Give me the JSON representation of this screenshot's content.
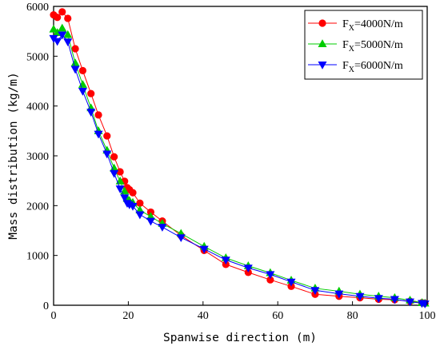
{
  "chart_data": {
    "type": "line",
    "xlabel": "Spanwise direction (m)",
    "ylabel": "Mass distribution (kg/m)",
    "xlim": [
      0,
      100
    ],
    "ylim": [
      0,
      6000
    ],
    "x_ticks": [
      0,
      20,
      40,
      60,
      80,
      100
    ],
    "y_ticks": [
      0,
      1000,
      2000,
      3000,
      4000,
      5000,
      6000
    ],
    "grid": false,
    "legend_position": "top-right",
    "series": [
      {
        "name_prefix": "F",
        "name_subscript": "X",
        "name_suffix": "=4000N/m",
        "color": "#ff0000",
        "marker": "circle",
        "points": [
          [
            0,
            5830
          ],
          [
            1,
            5780
          ],
          [
            2.3,
            5890
          ],
          [
            3.8,
            5760
          ],
          [
            5.8,
            5150
          ],
          [
            7.8,
            4710
          ],
          [
            10,
            4250
          ],
          [
            12,
            3820
          ],
          [
            14.3,
            3400
          ],
          [
            16.2,
            2980
          ],
          [
            17.8,
            2680
          ],
          [
            19,
            2490
          ],
          [
            19.7,
            2360
          ],
          [
            20.3,
            2320
          ],
          [
            21.2,
            2260
          ],
          [
            23.1,
            2050
          ],
          [
            26,
            1870
          ],
          [
            29.1,
            1690
          ],
          [
            34.1,
            1400
          ],
          [
            40.3,
            1100
          ],
          [
            46.1,
            820
          ],
          [
            52.1,
            660
          ],
          [
            58,
            510
          ],
          [
            63.6,
            380
          ],
          [
            70,
            220
          ],
          [
            76.4,
            180
          ],
          [
            82,
            150
          ],
          [
            87,
            120
          ],
          [
            91.3,
            110
          ],
          [
            95.4,
            80
          ],
          [
            98.6,
            50
          ],
          [
            99.4,
            40
          ]
        ]
      },
      {
        "name_prefix": "F",
        "name_subscript": "X",
        "name_suffix": "=5000N/m",
        "color": "#00cc00",
        "marker": "triangle-up",
        "points": [
          [
            0,
            5540
          ],
          [
            1,
            5470
          ],
          [
            2.3,
            5560
          ],
          [
            3.8,
            5430
          ],
          [
            5.8,
            4860
          ],
          [
            7.8,
            4430
          ],
          [
            10,
            3960
          ],
          [
            12,
            3500
          ],
          [
            14.3,
            3110
          ],
          [
            16.2,
            2750
          ],
          [
            17.8,
            2490
          ],
          [
            19,
            2290
          ],
          [
            19.7,
            2140
          ],
          [
            20.3,
            2100
          ],
          [
            21.2,
            2060
          ],
          [
            23.1,
            1910
          ],
          [
            26,
            1780
          ],
          [
            29.1,
            1640
          ],
          [
            34.1,
            1440
          ],
          [
            40.3,
            1180
          ],
          [
            46.1,
            950
          ],
          [
            52.1,
            790
          ],
          [
            58,
            650
          ],
          [
            63.6,
            500
          ],
          [
            70,
            340
          ],
          [
            76.4,
            280
          ],
          [
            82,
            220
          ],
          [
            87,
            180
          ],
          [
            91.3,
            150
          ],
          [
            95.4,
            100
          ],
          [
            98.6,
            50
          ],
          [
            99.4,
            40
          ]
        ]
      },
      {
        "name_prefix": "F",
        "name_subscript": "X",
        "name_suffix": "=6000N/m",
        "color": "#0000ff",
        "marker": "triangle-down",
        "points": [
          [
            0,
            5360
          ],
          [
            1,
            5300
          ],
          [
            2.3,
            5430
          ],
          [
            3.8,
            5290
          ],
          [
            5.8,
            4740
          ],
          [
            7.8,
            4300
          ],
          [
            10,
            3880
          ],
          [
            12,
            3440
          ],
          [
            14.3,
            3040
          ],
          [
            16.2,
            2650
          ],
          [
            17.8,
            2340
          ],
          [
            19,
            2160
          ],
          [
            19.7,
            2050
          ],
          [
            20.3,
            2020
          ],
          [
            21.2,
            1990
          ],
          [
            23.1,
            1820
          ],
          [
            26,
            1690
          ],
          [
            29.1,
            1570
          ],
          [
            34.1,
            1360
          ],
          [
            40.3,
            1130
          ],
          [
            46.1,
            910
          ],
          [
            52.1,
            750
          ],
          [
            58,
            620
          ],
          [
            63.6,
            470
          ],
          [
            70,
            300
          ],
          [
            76.4,
            230
          ],
          [
            82,
            180
          ],
          [
            87,
            140
          ],
          [
            91.3,
            120
          ],
          [
            95.4,
            70
          ],
          [
            98.6,
            40
          ],
          [
            99.4,
            30
          ]
        ]
      }
    ]
  }
}
